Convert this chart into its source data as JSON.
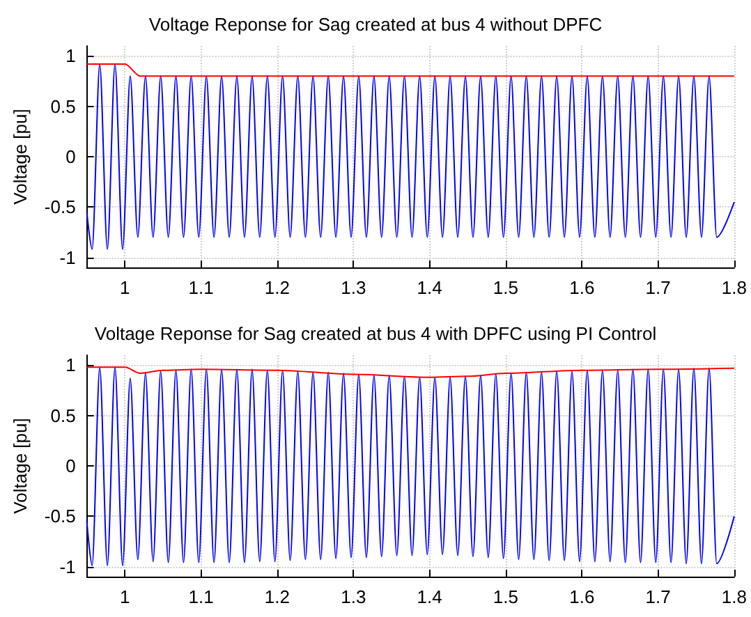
{
  "chart_data": [
    {
      "type": "line",
      "title": "Voltage Reponse for Sag created at bus 4 without DPFC",
      "ylabel": "Voltage [pu]",
      "xlim": [
        0.95,
        1.8
      ],
      "xticks": [
        1,
        1.1,
        1.2,
        1.3,
        1.4,
        1.5,
        1.6,
        1.7,
        1.8
      ],
      "ylim": [
        -1.1,
        1.1
      ],
      "yticks": [
        -1,
        -0.5,
        0,
        0.5,
        1
      ],
      "grid": true,
      "marker": "none",
      "line_style": "solid",
      "series": [
        {
          "color": "#0000ff",
          "x": [
            0.95,
            0.957,
            0.967,
            0.977,
            0.987,
            0.997,
            1.007,
            1.017,
            1.027,
            1.037,
            1.047,
            1.057,
            1.067,
            1.077,
            1.087,
            1.097,
            1.107,
            1.117,
            1.127,
            1.137,
            1.147,
            1.157,
            1.167,
            1.177,
            1.187,
            1.197,
            1.207,
            1.217,
            1.227,
            1.237,
            1.247,
            1.257,
            1.267,
            1.277,
            1.287,
            1.297,
            1.307,
            1.317,
            1.327,
            1.337,
            1.347,
            1.357,
            1.367,
            1.377,
            1.387,
            1.397,
            1.407,
            1.417,
            1.427,
            1.437,
            1.447,
            1.457,
            1.467,
            1.477,
            1.487,
            1.497,
            1.507,
            1.517,
            1.527,
            1.537,
            1.547,
            1.557,
            1.567,
            1.577,
            1.587,
            1.597,
            1.607,
            1.617,
            1.627,
            1.637,
            1.647,
            1.657,
            1.667,
            1.677,
            1.687,
            1.697,
            1.707,
            1.717,
            1.727,
            1.737,
            1.747,
            1.757,
            1.767,
            1.777,
            1.8
          ],
          "values": [
            -0.55,
            -0.92,
            0.92,
            -0.92,
            0.92,
            -0.92,
            0.8,
            -0.8,
            0.8,
            -0.8,
            0.8,
            -0.8,
            0.8,
            -0.8,
            0.8,
            -0.8,
            0.8,
            -0.8,
            0.8,
            -0.8,
            0.8,
            -0.8,
            0.8,
            -0.8,
            0.8,
            -0.8,
            0.8,
            -0.8,
            0.8,
            -0.8,
            0.8,
            -0.8,
            0.8,
            -0.8,
            0.8,
            -0.8,
            0.8,
            -0.8,
            0.8,
            -0.8,
            0.8,
            -0.8,
            0.8,
            -0.8,
            0.8,
            -0.8,
            0.8,
            -0.8,
            0.8,
            -0.8,
            0.8,
            -0.8,
            0.8,
            -0.8,
            0.8,
            -0.8,
            0.8,
            -0.8,
            0.8,
            -0.8,
            0.8,
            -0.8,
            0.8,
            -0.8,
            0.8,
            -0.8,
            0.8,
            -0.8,
            0.8,
            -0.8,
            0.8,
            -0.8,
            0.8,
            -0.8,
            0.8,
            -0.8,
            0.8,
            -0.8,
            0.8,
            -0.8,
            0.8,
            -0.8,
            0.8,
            -0.8,
            -0.45
          ]
        },
        {
          "color": "#ff0000",
          "x": [
            0.95,
            1.0,
            1.02,
            1.8
          ],
          "values": [
            0.92,
            0.92,
            0.8,
            0.8
          ]
        }
      ]
    },
    {
      "type": "line",
      "title": "Voltage Reponse for Sag created at bus 4 with DPFC using PI Control",
      "ylabel": "Voltage [pu]",
      "xlim": [
        0.95,
        1.8
      ],
      "xticks": [
        1,
        1.1,
        1.2,
        1.3,
        1.4,
        1.5,
        1.6,
        1.7,
        1.8
      ],
      "ylim": [
        -1.1,
        1.1
      ],
      "yticks": [
        -1,
        -0.5,
        0,
        0.5,
        1
      ],
      "grid": true,
      "marker": "none",
      "line_style": "solid",
      "series": [
        {
          "color": "#0000ff",
          "x": [
            0.95,
            0.957,
            0.967,
            0.977,
            0.987,
            0.997,
            1.007,
            1.017,
            1.027,
            1.037,
            1.047,
            1.057,
            1.067,
            1.077,
            1.087,
            1.097,
            1.107,
            1.117,
            1.127,
            1.137,
            1.147,
            1.157,
            1.167,
            1.177,
            1.187,
            1.197,
            1.207,
            1.217,
            1.227,
            1.237,
            1.247,
            1.257,
            1.267,
            1.277,
            1.287,
            1.297,
            1.307,
            1.317,
            1.327,
            1.337,
            1.347,
            1.357,
            1.367,
            1.377,
            1.387,
            1.397,
            1.407,
            1.417,
            1.427,
            1.437,
            1.447,
            1.457,
            1.467,
            1.477,
            1.487,
            1.497,
            1.507,
            1.517,
            1.527,
            1.537,
            1.547,
            1.557,
            1.567,
            1.577,
            1.587,
            1.597,
            1.607,
            1.617,
            1.627,
            1.637,
            1.647,
            1.657,
            1.667,
            1.677,
            1.687,
            1.697,
            1.707,
            1.717,
            1.727,
            1.737,
            1.747,
            1.757,
            1.767,
            1.777,
            1.8
          ],
          "values": [
            -0.55,
            -0.99,
            0.98,
            -0.99,
            0.98,
            -0.99,
            0.87,
            -0.93,
            0.92,
            -0.95,
            0.94,
            -0.96,
            0.95,
            -0.96,
            0.96,
            -0.96,
            0.96,
            -0.96,
            0.96,
            -0.96,
            0.96,
            -0.96,
            0.96,
            -0.95,
            0.95,
            -0.95,
            0.95,
            -0.94,
            0.94,
            -0.93,
            0.93,
            -0.93,
            0.93,
            -0.92,
            0.92,
            -0.91,
            0.91,
            -0.91,
            0.9,
            -0.9,
            0.9,
            -0.89,
            0.89,
            -0.89,
            0.88,
            -0.88,
            0.88,
            -0.88,
            0.88,
            -0.89,
            0.89,
            -0.9,
            0.9,
            -0.91,
            0.91,
            -0.92,
            0.92,
            -0.93,
            0.93,
            -0.93,
            0.93,
            -0.94,
            0.94,
            -0.94,
            0.94,
            -0.95,
            0.95,
            -0.95,
            0.95,
            -0.95,
            0.95,
            -0.96,
            0.96,
            -0.96,
            0.96,
            -0.96,
            0.96,
            -0.96,
            0.96,
            -0.97,
            0.97,
            -0.97,
            0.97,
            -0.97,
            -0.5
          ]
        },
        {
          "color": "#ff0000",
          "x": [
            0.95,
            1.0,
            1.02,
            1.05,
            1.1,
            1.2,
            1.3,
            1.4,
            1.45,
            1.5,
            1.6,
            1.7,
            1.8
          ],
          "values": [
            0.98,
            0.98,
            0.92,
            0.95,
            0.96,
            0.95,
            0.91,
            0.88,
            0.89,
            0.92,
            0.95,
            0.96,
            0.97
          ]
        }
      ]
    }
  ]
}
